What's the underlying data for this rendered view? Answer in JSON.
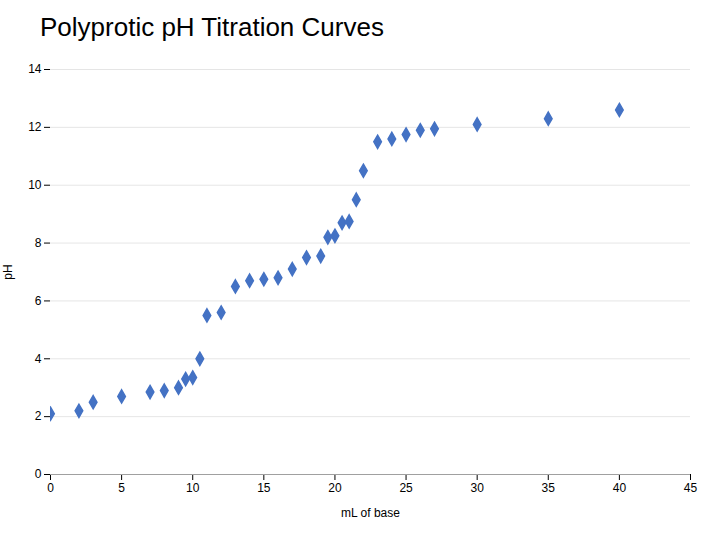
{
  "chart_data": {
    "type": "scatter",
    "title": "Polyprotic pH Titration Curves",
    "xlabel": "mL of base",
    "ylabel": "pH",
    "x": [
      0,
      2,
      3,
      5,
      7,
      8,
      9,
      9.5,
      10,
      10.5,
      11,
      12,
      13,
      14,
      15,
      16,
      17,
      18,
      19,
      19.5,
      20,
      20.5,
      21,
      21.5,
      22,
      23,
      24,
      25,
      26,
      27,
      30,
      35,
      40
    ],
    "values": [
      2.1,
      2.2,
      2.5,
      2.7,
      2.85,
      2.9,
      3.0,
      3.3,
      3.35,
      4.0,
      5.5,
      5.6,
      6.5,
      6.7,
      6.75,
      6.8,
      7.1,
      7.5,
      7.55,
      8.2,
      8.25,
      8.7,
      8.75,
      9.5,
      10.5,
      11.5,
      11.6,
      11.75,
      11.9,
      11.95,
      12.1,
      12.3,
      12.6
    ],
    "color": "#4472C4",
    "marker": "diamond",
    "xlim": [
      0,
      45
    ],
    "ylim": [
      0,
      14
    ],
    "xticks": [
      0,
      5,
      10,
      15,
      20,
      25,
      30,
      35,
      40,
      45
    ],
    "yticks": [
      0,
      2,
      4,
      6,
      8,
      10,
      12,
      14
    ],
    "grid": "y"
  }
}
